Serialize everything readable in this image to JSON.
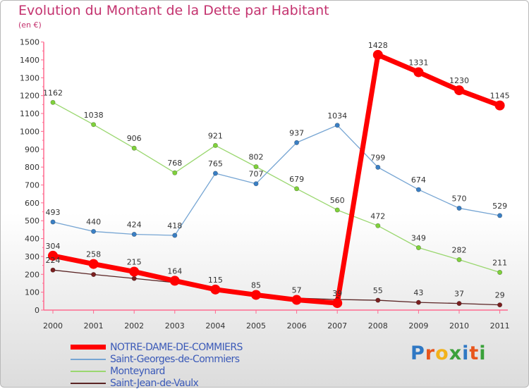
{
  "title": "Evolution du Montant de la Dette par Habitant",
  "subtitle": "(en €)",
  "logo_text": "Proxiti",
  "logo_colors": [
    "#2f78c4",
    "#e8551c",
    "#f2b21b",
    "#3aa13a",
    "#2f78c4",
    "#e8551c",
    "#3aa13a"
  ],
  "chart_data": {
    "type": "line",
    "title": "Evolution du Montant de la Dette par Habitant",
    "subtitle": "(en €)",
    "x": [
      "2000",
      "2001",
      "2002",
      "2003",
      "2004",
      "2005",
      "2006",
      "2007",
      "2008",
      "2009",
      "2010",
      "2011"
    ],
    "ylim": [
      0,
      1500
    ],
    "yticks": [
      0,
      100,
      200,
      300,
      400,
      500,
      600,
      700,
      800,
      900,
      1000,
      1100,
      1200,
      1300,
      1400,
      1500
    ],
    "grid": false,
    "legend_position": "bottom-left",
    "series": [
      {
        "name": "Saint-Jean-de-Vaulx",
        "color": "#7a1f1f",
        "line_color": "#5a2424",
        "values": [
          224,
          199,
          177,
          154,
          117,
          85,
          67,
          59,
          55,
          43,
          37,
          29
        ],
        "labels": [
          "224",
          "",
          "",
          "",
          "",
          "",
          "",
          "",
          "55",
          "43",
          "37",
          "29"
        ]
      },
      {
        "name": "Monteynard",
        "color": "#7fd13b",
        "line_color": "#9ad76f",
        "values": [
          1162,
          1038,
          906,
          768,
          921,
          802,
          679,
          560,
          472,
          349,
          282,
          211
        ]
      },
      {
        "name": "Saint-Georges-de-Commiers",
        "color": "#3a7fc4",
        "line_color": "#76a5d3",
        "values": [
          493,
          440,
          424,
          418,
          765,
          707,
          937,
          1034,
          799,
          674,
          570,
          529
        ]
      },
      {
        "name": "NOTRE-DAME-DE-COMMIERS",
        "color": "#ff0000",
        "line_color": "#ff0000",
        "values": [
          304,
          258,
          215,
          164,
          115,
          85,
          57,
          39,
          1428,
          1331,
          1230,
          1145
        ],
        "labels": [
          "304",
          "258",
          "215",
          "164",
          "115",
          "85",
          "57",
          "39",
          "1428",
          "1331",
          "1230",
          "1145"
        ]
      }
    ],
    "legend": [
      "NOTRE-DAME-DE-COMMIERS",
      "Saint-Georges-de-Commiers",
      "Monteynard",
      "Saint-Jean-de-Vaulx"
    ]
  }
}
